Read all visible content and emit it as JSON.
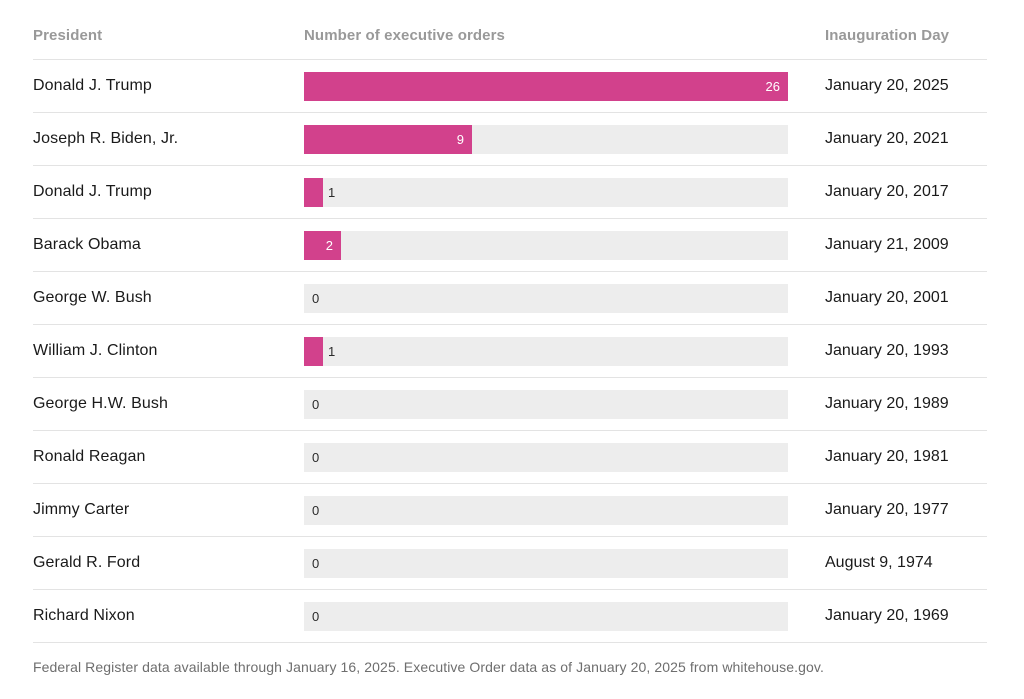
{
  "table": {
    "headers": [
      "President",
      "Number of executive orders",
      "Inauguration Day"
    ]
  },
  "chart_data": {
    "type": "bar",
    "orientation": "horizontal",
    "categories": [
      "Donald J. Trump",
      "Joseph R. Biden, Jr.",
      "Donald J. Trump",
      "Barack Obama",
      "George W. Bush",
      "William J. Clinton",
      "George H.W. Bush",
      "Ronald Reagan",
      "Jimmy Carter",
      "Gerald R. Ford",
      "Richard Nixon"
    ],
    "values": [
      26,
      9,
      1,
      2,
      0,
      1,
      0,
      0,
      0,
      0,
      0
    ],
    "inauguration_days": [
      "January 20, 2025",
      "January 20, 2021",
      "January 20, 2017",
      "January 21, 2009",
      "January 20, 2001",
      "January 20, 1993",
      "January 20, 1989",
      "January 20, 1981",
      "January 20, 1977",
      "August 9, 1974",
      "January 20, 1969"
    ],
    "xlabel": "Number of executive orders",
    "ylabel": "President",
    "xlim": [
      0,
      26
    ],
    "grid": false,
    "legend": false,
    "bar_color": "#d2418c",
    "track_color": "#ededed"
  },
  "footer": {
    "note": "Federal Register data available through January 16, 2025. Executive Order data as of January 20, 2025 from whitehouse.gov."
  }
}
